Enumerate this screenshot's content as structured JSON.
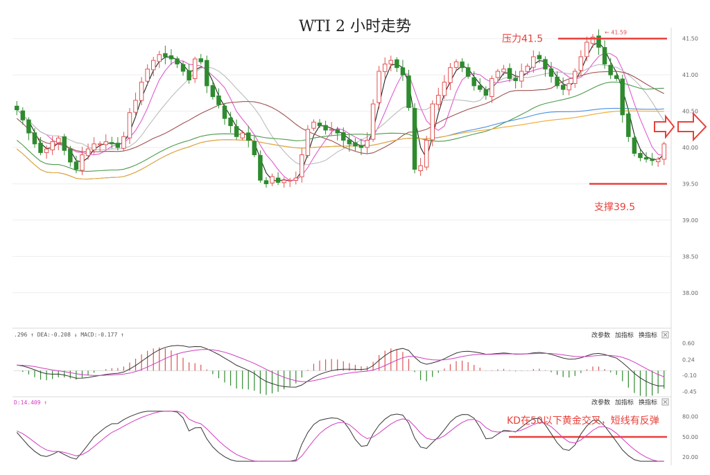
{
  "chart_data": {
    "type": "candlestick",
    "title": "WTI 2 小时走势",
    "price_axis": {
      "ylim": [
        37.55,
        41.65
      ],
      "ticks": [
        "41.50",
        "41.00",
        "40.50",
        "40.00",
        "39.50",
        "39.00",
        "38.50",
        "38.00"
      ],
      "tick_values": [
        41.5,
        41.0,
        40.5,
        40.0,
        39.5,
        39.0,
        38.5,
        38.0
      ]
    },
    "bar_count": 110,
    "closes": [
      40.52,
      40.38,
      40.2,
      40.05,
      39.93,
      39.98,
      40.08,
      40.13,
      39.96,
      39.8,
      39.7,
      39.9,
      39.98,
      40.05,
      40.05,
      40.08,
      40.05,
      40.0,
      40.15,
      40.48,
      40.65,
      40.9,
      41.08,
      41.2,
      41.28,
      41.25,
      41.22,
      41.15,
      41.05,
      40.93,
      41.22,
      41.18,
      40.85,
      40.7,
      40.59,
      40.4,
      40.3,
      40.15,
      40.2,
      40.1,
      39.9,
      39.55,
      39.5,
      39.6,
      39.52,
      39.55,
      39.55,
      39.58,
      39.9,
      40.25,
      40.35,
      40.3,
      40.24,
      40.25,
      40.2,
      40.1,
      40.05,
      40.02,
      40.0,
      40.1,
      40.6,
      41.05,
      41.15,
      41.2,
      41.1,
      41.0,
      40.55,
      39.7,
      39.75,
      40.1,
      40.6,
      40.72,
      40.9,
      41.1,
      41.18,
      41.1,
      40.98,
      40.85,
      40.8,
      40.72,
      40.95,
      41.05,
      41.08,
      40.95,
      40.92,
      41.05,
      41.12,
      41.25,
      41.22,
      41.08,
      40.98,
      40.85,
      40.8,
      40.88,
      41.05,
      41.25,
      41.45,
      41.52,
      41.38,
      41.15,
      41.0,
      40.95,
      40.45,
      40.15,
      39.92,
      39.86,
      39.84,
      39.82,
      39.84,
      40.05
    ],
    "ma_series_colors": [
      "#222222",
      "#e05ad0",
      "#bbbbbb",
      "#a05050",
      "#4a9a4a",
      "#4a90e0",
      "#f0a830"
    ],
    "annotations": {
      "resistance": {
        "label": "压力41.5",
        "value": 41.5
      },
      "support": {
        "label": "支撑39.5",
        "value": 39.5
      },
      "high_marker": "41.59"
    },
    "macd": {
      "header": ".296 ↑  DEA:-0.208 ↓  MACD:-0.177 ↑",
      "ticks": [
        "0.60",
        "0.24",
        "-0.10",
        "-0.45"
      ],
      "tick_values": [
        0.6,
        0.24,
        -0.1,
        -0.45
      ],
      "ylim": [
        -0.52,
        0.68
      ]
    },
    "kd": {
      "header": "D:14.409 ↑",
      "ticks": [
        "80.00",
        "50.00",
        "20.00"
      ],
      "tick_values": [
        80,
        50,
        20
      ],
      "ylim": [
        10,
        92
      ],
      "reference_level": 50,
      "annotation": "KD在50以下黄金交叉，短线有反弹"
    },
    "panel_buttons": [
      "改参数",
      "加指标",
      "换指标"
    ],
    "colors": {
      "up": "#e05050",
      "down": "#2e8b2e",
      "annotation": "#e8403a",
      "grid": "#eeeeee"
    }
  }
}
